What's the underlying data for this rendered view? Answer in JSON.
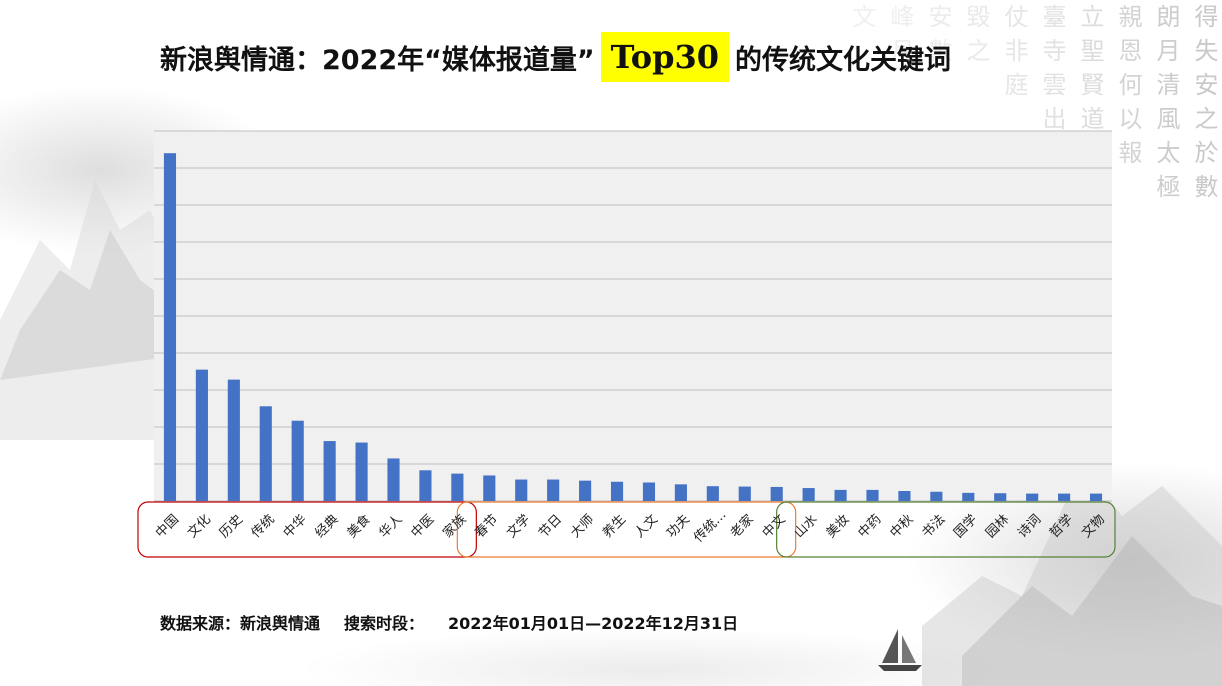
{
  "title": {
    "prefix": "新浪舆情通：2022年“媒体报道量”",
    "highlight": "Top30",
    "suffix": "的传统文化关键词"
  },
  "source": {
    "label": "数据来源：新浪舆情通",
    "period_label": "搜索时段：",
    "period": "2022年01月01日—2022年12月31日"
  },
  "colors": {
    "bar": "#4472c4",
    "plot_bg": "#f0f0f0",
    "grid": "#bfbfbf",
    "group_red": "#c00000",
    "group_orange": "#ed7d31",
    "group_green": "#548235",
    "highlight": "#ffff00"
  },
  "calligraphy": [
    "得失安之於數",
    "朗月清風太極",
    "親恩何以報",
    "立聖賢道何",
    "臺寺雲出",
    "仗非庭",
    "毀之",
    "安數",
    "峰月",
    "文"
  ],
  "chart_data": {
    "type": "bar",
    "categories": [
      "中国",
      "文化",
      "历史",
      "传统",
      "中华",
      "经典",
      "美食",
      "华人",
      "中医",
      "家族",
      "春节",
      "文学",
      "节日",
      "大师",
      "养生",
      "人文",
      "功夫",
      "传统…",
      "老家",
      "中文",
      "山水",
      "美妆",
      "中药",
      "中秋",
      "书法",
      "国学",
      "园林",
      "诗词",
      "哲学",
      "文物"
    ],
    "values": [
      9.4,
      3.55,
      3.28,
      2.56,
      2.17,
      1.62,
      1.58,
      1.15,
      0.83,
      0.74,
      0.69,
      0.58,
      0.58,
      0.55,
      0.52,
      0.5,
      0.45,
      0.4,
      0.39,
      0.38,
      0.35,
      0.3,
      0.3,
      0.27,
      0.25,
      0.22,
      0.21,
      0.2,
      0.2,
      0.2
    ],
    "ylim": [
      0,
      10
    ],
    "y_gridlines": 10,
    "y_tick_labels_shown": false,
    "groups": [
      {
        "start": 0,
        "end": 9,
        "color": "#c00000"
      },
      {
        "start": 10,
        "end": 19,
        "color": "#ed7d31"
      },
      {
        "start": 20,
        "end": 29,
        "color": "#548235"
      }
    ]
  }
}
